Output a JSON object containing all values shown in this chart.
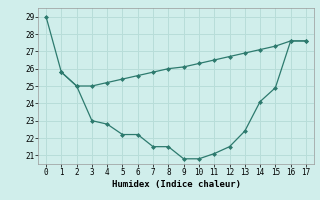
{
  "line1_x": [
    0,
    1,
    2,
    3,
    4,
    5,
    6,
    7,
    8,
    9,
    10,
    11,
    12,
    13,
    14,
    15,
    16,
    17
  ],
  "line1_y": [
    29,
    25.8,
    25.0,
    23.0,
    22.8,
    22.2,
    22.2,
    21.5,
    21.5,
    20.8,
    20.8,
    21.1,
    21.5,
    22.4,
    24.1,
    24.9,
    27.6,
    27.6
  ],
  "line2_x": [
    1,
    2,
    3,
    4,
    5,
    6,
    7,
    8,
    9,
    10,
    11,
    12,
    13,
    14,
    15,
    16,
    17
  ],
  "line2_y": [
    25.8,
    25.0,
    25.0,
    25.2,
    25.4,
    25.6,
    25.8,
    26.0,
    26.1,
    26.3,
    26.5,
    26.7,
    26.9,
    27.1,
    27.3,
    27.6,
    27.6
  ],
  "color": "#2d7a6e",
  "bg_color": "#d0eeeb",
  "grid_color": "#b8ddd9",
  "xlabel": "Humidex (Indice chaleur)",
  "xlim": [
    -0.5,
    17.5
  ],
  "ylim": [
    20.5,
    29.5
  ],
  "yticks": [
    21,
    22,
    23,
    24,
    25,
    26,
    27,
    28,
    29
  ],
  "xticks": [
    0,
    1,
    2,
    3,
    4,
    5,
    6,
    7,
    8,
    9,
    10,
    11,
    12,
    13,
    14,
    15,
    16,
    17
  ]
}
